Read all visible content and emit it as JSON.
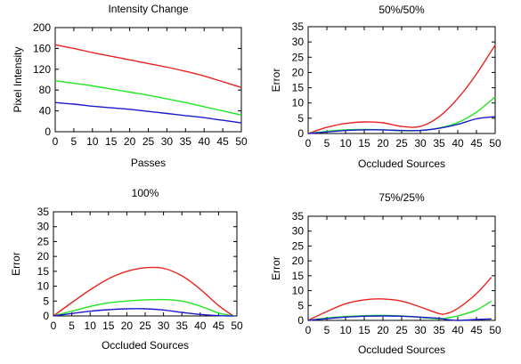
{
  "chart_data": [
    {
      "type": "line",
      "title": "Intensity Change",
      "xlabel": "Passes",
      "ylabel": "Pixel Intensity",
      "xlim": [
        0,
        50
      ],
      "ylim": [
        0,
        200
      ],
      "xticks": [
        0,
        5,
        10,
        15,
        20,
        25,
        30,
        35,
        40,
        45,
        50
      ],
      "yticks": [
        0,
        40,
        80,
        120,
        160,
        200
      ],
      "grid": false,
      "series": [
        {
          "color": "#e8231f",
          "x": [
            0,
            5,
            10,
            15,
            20,
            25,
            30,
            35,
            40,
            45,
            50
          ],
          "y": [
            167,
            160,
            152,
            145,
            138,
            131,
            124,
            116,
            107,
            96,
            85
          ]
        },
        {
          "color": "#22e622",
          "x": [
            0,
            5,
            10,
            15,
            20,
            25,
            30,
            35,
            40,
            45,
            50
          ],
          "y": [
            98,
            93,
            88,
            82,
            76,
            70,
            63,
            56,
            48,
            40,
            32
          ]
        },
        {
          "color": "#1a1acc",
          "x": [
            0,
            5,
            10,
            15,
            20,
            25,
            30,
            35,
            40,
            45,
            50
          ],
          "y": [
            56,
            53,
            49,
            46,
            43,
            39,
            35,
            31,
            27,
            22,
            17
          ]
        }
      ]
    },
    {
      "type": "line",
      "title": "50%/50%",
      "xlabel": "Occluded Sources",
      "ylabel": "Error",
      "xlim": [
        0,
        50
      ],
      "ylim": [
        0,
        35
      ],
      "xticks": [
        0,
        5,
        10,
        15,
        20,
        25,
        30,
        35,
        40,
        45,
        50
      ],
      "yticks": [
        0,
        5,
        10,
        15,
        20,
        25,
        30,
        35
      ],
      "grid": false,
      "series": [
        {
          "color": "#e8231f",
          "x": [
            0,
            5,
            10,
            15,
            20,
            25,
            30,
            35,
            40,
            45,
            50
          ],
          "y": [
            0,
            2,
            3.3,
            3.8,
            3.5,
            2.3,
            2.3,
            5.5,
            11.5,
            19.5,
            29
          ]
        },
        {
          "color": "#22e622",
          "x": [
            0,
            5,
            10,
            15,
            20,
            25,
            30,
            35,
            40,
            45,
            50
          ],
          "y": [
            0,
            0.7,
            1.2,
            1.3,
            1.2,
            0.9,
            1,
            1.8,
            3.6,
            7,
            12
          ]
        },
        {
          "color": "#1a1acc",
          "x": [
            0,
            5,
            10,
            15,
            20,
            25,
            30,
            35,
            40,
            45,
            50
          ],
          "y": [
            0,
            0.5,
            1,
            1.2,
            1.2,
            1,
            1,
            1.7,
            3,
            4.8,
            5.5
          ]
        }
      ]
    },
    {
      "type": "line",
      "title": "100%",
      "xlabel": "Occluded Sources",
      "ylabel": "Error",
      "xlim": [
        0,
        50
      ],
      "ylim": [
        0,
        35
      ],
      "xticks": [
        0,
        5,
        10,
        15,
        20,
        25,
        30,
        35,
        40,
        45,
        50
      ],
      "yticks": [
        0,
        5,
        10,
        15,
        20,
        25,
        30,
        35
      ],
      "grid": false,
      "series": [
        {
          "color": "#e8231f",
          "x": [
            0,
            5,
            10,
            15,
            20,
            25,
            30,
            35,
            40,
            45,
            49
          ],
          "y": [
            0,
            4.5,
            8.8,
            12.5,
            15,
            16.2,
            16,
            13.5,
            9,
            3.5,
            0
          ]
        },
        {
          "color": "#22e622",
          "x": [
            0,
            5,
            10,
            15,
            20,
            25,
            30,
            35,
            40,
            45,
            49
          ],
          "y": [
            0,
            1.6,
            3.2,
            4.4,
            5,
            5.4,
            5.5,
            5,
            3.3,
            1,
            0
          ]
        },
        {
          "color": "#1a1acc",
          "x": [
            0,
            5,
            10,
            15,
            20,
            25,
            30,
            35,
            40,
            45,
            49
          ],
          "y": [
            0,
            0.8,
            1.6,
            2.1,
            2.4,
            2.4,
            2,
            1.2,
            0.5,
            0.1,
            0
          ]
        }
      ]
    },
    {
      "type": "line",
      "title": "75%/25%",
      "xlabel": "Occluded Sources",
      "ylabel": "Error",
      "xlim": [
        0,
        50
      ],
      "ylim": [
        0,
        35
      ],
      "xticks": [
        0,
        5,
        10,
        15,
        20,
        25,
        30,
        35,
        40,
        45,
        50
      ],
      "yticks": [
        0,
        5,
        10,
        15,
        20,
        25,
        30,
        35
      ],
      "grid": false,
      "series": [
        {
          "color": "#e8231f",
          "x": [
            0,
            5,
            10,
            15,
            20,
            25,
            30,
            35,
            37,
            40,
            45,
            49
          ],
          "y": [
            0,
            3,
            5.6,
            6.9,
            7.2,
            6.5,
            4.5,
            2.3,
            2.3,
            4,
            9,
            14.5
          ]
        },
        {
          "color": "#22e622",
          "x": [
            0,
            5,
            10,
            15,
            20,
            25,
            30,
            35,
            37,
            40,
            45,
            49
          ],
          "y": [
            0,
            0.8,
            1.3,
            1.6,
            1.7,
            1.5,
            1,
            0.5,
            0.8,
            1.5,
            3.5,
            6.5
          ]
        },
        {
          "color": "#1a1acc",
          "x": [
            0,
            5,
            10,
            15,
            20,
            25,
            30,
            35,
            37,
            40,
            45,
            49
          ],
          "y": [
            0,
            0.6,
            1.1,
            1.4,
            1.5,
            1.4,
            1.1,
            0.7,
            0.3,
            0,
            0.3,
            0.5
          ]
        }
      ]
    }
  ]
}
